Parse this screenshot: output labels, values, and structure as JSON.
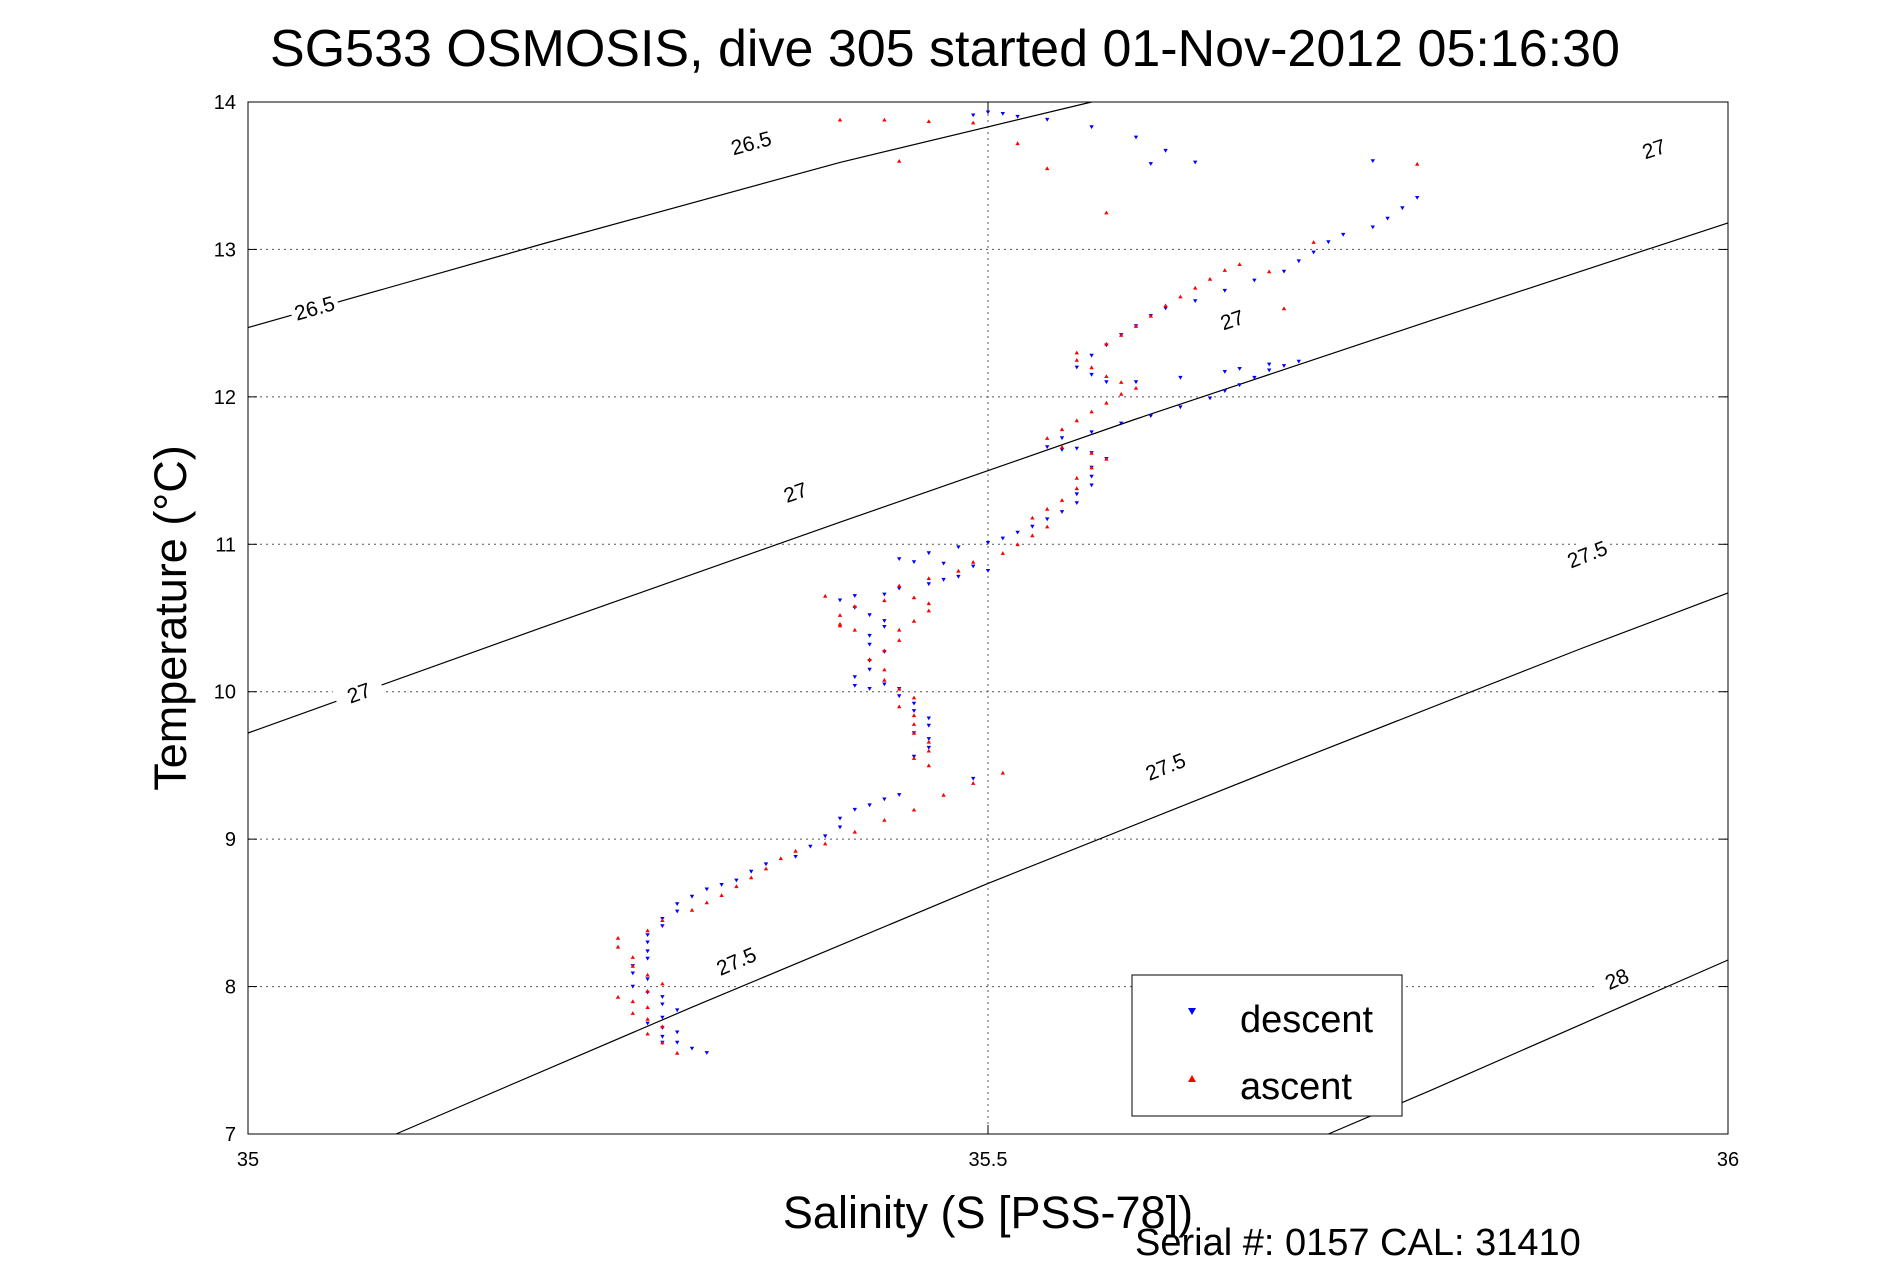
{
  "chart_data": {
    "type": "scatter",
    "title": "SG533 OSMOSIS, dive 305 started 01-Nov-2012 05:16:30",
    "xlabel": "Salinity (S [PSS-78])",
    "ylabel": "Temperature (°C)",
    "xlim": [
      35,
      36
    ],
    "ylim": [
      7,
      14
    ],
    "xticks": [
      "35",
      "35.5",
      "36"
    ],
    "xtick_values": [
      35,
      35.5,
      36
    ],
    "yticks": [
      "7",
      "8",
      "9",
      "10",
      "11",
      "12",
      "13",
      "14"
    ],
    "ytick_values": [
      7,
      8,
      9,
      10,
      11,
      12,
      13,
      14
    ],
    "grid": true,
    "legend_position": "bottom-right",
    "footer": "Serial #: 0157  CAL: 31410",
    "colors": {
      "descent": "#0000ff",
      "ascent": "#ff0000",
      "contour": "#000000"
    },
    "density_contours": [
      {
        "value": 26.5,
        "points": [
          [
            35.0,
            12.47
          ],
          [
            35.2,
            13.04
          ],
          [
            35.4,
            13.59
          ],
          [
            35.57,
            14.0
          ]
        ],
        "labels": [
          {
            "text": "26.5",
            "s": 35.045,
            "t": 12.6
          },
          {
            "text": "26.5",
            "s": 35.34,
            "t": 13.72
          }
        ]
      },
      {
        "value": 27,
        "points": [
          [
            35.0,
            9.72
          ],
          [
            35.2,
            10.44
          ],
          [
            35.4,
            11.15
          ],
          [
            35.6,
            11.85
          ],
          [
            35.8,
            12.52
          ],
          [
            36.0,
            13.18
          ]
        ],
        "labels": [
          {
            "text": "27",
            "s": 35.075,
            "t": 9.99
          },
          {
            "text": "27",
            "s": 35.37,
            "t": 11.35
          },
          {
            "text": "27",
            "s": 35.665,
            "t": 12.52
          },
          {
            "text": "27",
            "s": 35.95,
            "t": 13.68
          }
        ]
      },
      {
        "value": 27.5,
        "points": [
          [
            35.1,
            7.0
          ],
          [
            35.3,
            7.86
          ],
          [
            35.5,
            8.7
          ],
          [
            35.7,
            9.5
          ],
          [
            35.9,
            10.29
          ],
          [
            36.0,
            10.67
          ]
        ],
        "labels": [
          {
            "text": "27.5",
            "s": 35.33,
            "t": 8.17
          },
          {
            "text": "27.5",
            "s": 35.62,
            "t": 9.49
          },
          {
            "text": "27.5",
            "s": 35.905,
            "t": 10.93
          }
        ]
      },
      {
        "value": 28,
        "points": [
          [
            35.73,
            7.0
          ],
          [
            35.8,
            7.3
          ],
          [
            35.9,
            7.74
          ],
          [
            36.0,
            8.18
          ]
        ],
        "labels": [
          {
            "text": "28",
            "s": 35.925,
            "t": 8.05
          }
        ]
      }
    ],
    "series": [
      {
        "name": "descent",
        "marker": "triangle-down",
        "points": [
          [
            35.31,
            7.55
          ],
          [
            35.3,
            7.58
          ],
          [
            35.29,
            7.62
          ],
          [
            35.28,
            7.62
          ],
          [
            35.28,
            7.66
          ],
          [
            35.29,
            7.69
          ],
          [
            35.28,
            7.72
          ],
          [
            35.27,
            7.75
          ],
          [
            35.28,
            7.79
          ],
          [
            35.29,
            7.84
          ],
          [
            35.28,
            7.88
          ],
          [
            35.28,
            7.93
          ],
          [
            35.27,
            7.96
          ],
          [
            35.26,
            8.0
          ],
          [
            35.27,
            8.05
          ],
          [
            35.26,
            8.09
          ],
          [
            35.26,
            8.14
          ],
          [
            35.27,
            8.19
          ],
          [
            35.27,
            8.24
          ],
          [
            35.27,
            8.3
          ],
          [
            35.27,
            8.35
          ],
          [
            35.28,
            8.41
          ],
          [
            35.28,
            8.46
          ],
          [
            35.29,
            8.51
          ],
          [
            35.29,
            8.56
          ],
          [
            35.3,
            8.61
          ],
          [
            35.31,
            8.66
          ],
          [
            35.32,
            8.69
          ],
          [
            35.33,
            8.72
          ],
          [
            35.34,
            8.78
          ],
          [
            35.35,
            8.83
          ],
          [
            35.37,
            8.88
          ],
          [
            35.38,
            8.95
          ],
          [
            35.39,
            9.02
          ],
          [
            35.4,
            9.08
          ],
          [
            35.4,
            9.14
          ],
          [
            35.41,
            9.2
          ],
          [
            35.42,
            9.23
          ],
          [
            35.43,
            9.27
          ],
          [
            35.44,
            9.3
          ],
          [
            35.49,
            9.41
          ],
          [
            35.45,
            9.56
          ],
          [
            35.46,
            9.62
          ],
          [
            35.46,
            9.68
          ],
          [
            35.45,
            9.72
          ],
          [
            35.46,
            9.77
          ],
          [
            35.46,
            9.82
          ],
          [
            35.45,
            9.87
          ],
          [
            35.45,
            9.92
          ],
          [
            35.44,
            9.97
          ],
          [
            35.44,
            10.02
          ],
          [
            35.43,
            10.05
          ],
          [
            35.42,
            10.02
          ],
          [
            35.41,
            10.04
          ],
          [
            35.41,
            10.1
          ],
          [
            35.42,
            10.15
          ],
          [
            35.42,
            10.21
          ],
          [
            35.43,
            10.27
          ],
          [
            35.42,
            10.32
          ],
          [
            35.42,
            10.38
          ],
          [
            35.43,
            10.44
          ],
          [
            35.43,
            10.48
          ],
          [
            35.42,
            10.52
          ],
          [
            35.41,
            10.57
          ],
          [
            35.4,
            10.62
          ],
          [
            35.41,
            10.65
          ],
          [
            35.43,
            10.66
          ],
          [
            35.44,
            10.7
          ],
          [
            35.46,
            10.73
          ],
          [
            35.47,
            10.76
          ],
          [
            35.48,
            10.78
          ],
          [
            35.5,
            10.82
          ],
          [
            35.49,
            10.85
          ],
          [
            35.47,
            10.87
          ],
          [
            35.45,
            10.88
          ],
          [
            35.44,
            10.9
          ],
          [
            35.46,
            10.94
          ],
          [
            35.48,
            10.98
          ],
          [
            35.5,
            11.01
          ],
          [
            35.51,
            11.04
          ],
          [
            35.52,
            11.08
          ],
          [
            35.53,
            11.12
          ],
          [
            35.54,
            11.17
          ],
          [
            35.55,
            11.22
          ],
          [
            35.56,
            11.28
          ],
          [
            35.56,
            11.34
          ],
          [
            35.57,
            11.4
          ],
          [
            35.57,
            11.46
          ],
          [
            35.57,
            11.52
          ],
          [
            35.58,
            11.58
          ],
          [
            35.57,
            11.62
          ],
          [
            35.56,
            11.65
          ],
          [
            35.55,
            11.64
          ],
          [
            35.54,
            11.66
          ],
          [
            35.55,
            11.72
          ],
          [
            35.57,
            11.76
          ],
          [
            35.59,
            11.82
          ],
          [
            35.61,
            11.87
          ],
          [
            35.63,
            11.93
          ],
          [
            35.65,
            11.99
          ],
          [
            35.66,
            12.04
          ],
          [
            35.67,
            12.08
          ],
          [
            35.68,
            12.13
          ],
          [
            35.69,
            12.18
          ],
          [
            35.7,
            12.21
          ],
          [
            35.71,
            12.24
          ],
          [
            35.69,
            12.22
          ],
          [
            35.67,
            12.19
          ],
          [
            35.66,
            12.17
          ],
          [
            35.63,
            12.13
          ],
          [
            35.6,
            12.1
          ],
          [
            35.58,
            12.1
          ],
          [
            35.57,
            12.15
          ],
          [
            35.56,
            12.2
          ],
          [
            35.57,
            12.28
          ],
          [
            35.58,
            12.35
          ],
          [
            35.59,
            12.42
          ],
          [
            35.6,
            12.48
          ],
          [
            35.61,
            12.55
          ],
          [
            35.62,
            12.6
          ],
          [
            35.64,
            12.65
          ],
          [
            35.66,
            12.72
          ],
          [
            35.68,
            12.79
          ],
          [
            35.7,
            12.85
          ],
          [
            35.71,
            12.92
          ],
          [
            35.72,
            12.98
          ],
          [
            35.73,
            13.05
          ],
          [
            35.74,
            13.1
          ],
          [
            35.76,
            13.15
          ],
          [
            35.77,
            13.21
          ],
          [
            35.78,
            13.28
          ],
          [
            35.79,
            13.35
          ],
          [
            35.64,
            13.59
          ],
          [
            35.62,
            13.67
          ],
          [
            35.6,
            13.76
          ],
          [
            35.57,
            13.83
          ],
          [
            35.54,
            13.88
          ],
          [
            35.51,
            13.92
          ],
          [
            35.5,
            13.93
          ],
          [
            35.49,
            13.91
          ],
          [
            35.52,
            13.9
          ],
          [
            35.76,
            13.6
          ],
          [
            35.61,
            13.58
          ]
        ]
      },
      {
        "name": "ascent",
        "marker": "triangle-up",
        "points": [
          [
            35.29,
            7.55
          ],
          [
            35.28,
            7.62
          ],
          [
            35.27,
            7.68
          ],
          [
            35.28,
            7.73
          ],
          [
            35.27,
            7.78
          ],
          [
            35.26,
            7.82
          ],
          [
            35.27,
            7.86
          ],
          [
            35.26,
            7.9
          ],
          [
            35.25,
            7.93
          ],
          [
            35.27,
            7.97
          ],
          [
            35.28,
            8.02
          ],
          [
            35.27,
            8.08
          ],
          [
            35.26,
            8.14
          ],
          [
            35.26,
            8.2
          ],
          [
            35.25,
            8.27
          ],
          [
            35.25,
            8.33
          ],
          [
            35.27,
            8.38
          ],
          [
            35.28,
            8.45
          ],
          [
            35.3,
            8.52
          ],
          [
            35.31,
            8.57
          ],
          [
            35.32,
            8.62
          ],
          [
            35.33,
            8.68
          ],
          [
            35.34,
            8.74
          ],
          [
            35.35,
            8.8
          ],
          [
            35.36,
            8.87
          ],
          [
            35.37,
            8.92
          ],
          [
            35.39,
            8.97
          ],
          [
            35.41,
            9.05
          ],
          [
            35.43,
            9.13
          ],
          [
            35.45,
            9.2
          ],
          [
            35.47,
            9.3
          ],
          [
            35.49,
            9.38
          ],
          [
            35.51,
            9.45
          ],
          [
            35.46,
            9.5
          ],
          [
            35.45,
            9.55
          ],
          [
            35.46,
            9.6
          ],
          [
            35.46,
            9.66
          ],
          [
            35.45,
            9.72
          ],
          [
            35.45,
            9.78
          ],
          [
            35.45,
            9.84
          ],
          [
            35.44,
            9.9
          ],
          [
            35.45,
            9.96
          ],
          [
            35.44,
            10.02
          ],
          [
            35.43,
            10.08
          ],
          [
            35.43,
            10.15
          ],
          [
            35.42,
            10.22
          ],
          [
            35.43,
            10.28
          ],
          [
            35.44,
            10.35
          ],
          [
            35.44,
            10.42
          ],
          [
            35.45,
            10.48
          ],
          [
            35.46,
            10.55
          ],
          [
            35.46,
            10.6
          ],
          [
            35.45,
            10.64
          ],
          [
            35.43,
            10.62
          ],
          [
            35.41,
            10.58
          ],
          [
            35.4,
            10.52
          ],
          [
            35.4,
            10.46
          ],
          [
            35.41,
            10.42
          ],
          [
            35.4,
            10.45
          ],
          [
            35.39,
            10.65
          ],
          [
            35.44,
            10.72
          ],
          [
            35.46,
            10.77
          ],
          [
            35.48,
            10.82
          ],
          [
            35.49,
            10.88
          ],
          [
            35.51,
            10.94
          ],
          [
            35.52,
            11.0
          ],
          [
            35.53,
            11.06
          ],
          [
            35.54,
            11.12
          ],
          [
            35.53,
            11.18
          ],
          [
            35.54,
            11.24
          ],
          [
            35.55,
            11.3
          ],
          [
            35.56,
            11.38
          ],
          [
            35.56,
            11.45
          ],
          [
            35.57,
            11.52
          ],
          [
            35.58,
            11.58
          ],
          [
            35.57,
            11.62
          ],
          [
            35.55,
            11.66
          ],
          [
            35.54,
            11.72
          ],
          [
            35.55,
            11.78
          ],
          [
            35.56,
            11.84
          ],
          [
            35.57,
            11.9
          ],
          [
            35.58,
            11.96
          ],
          [
            35.59,
            12.02
          ],
          [
            35.6,
            12.06
          ],
          [
            35.59,
            12.1
          ],
          [
            35.58,
            12.14
          ],
          [
            35.57,
            12.2
          ],
          [
            35.56,
            12.25
          ],
          [
            35.56,
            12.3
          ],
          [
            35.58,
            12.36
          ],
          [
            35.59,
            12.42
          ],
          [
            35.6,
            12.48
          ],
          [
            35.61,
            12.55
          ],
          [
            35.62,
            12.62
          ],
          [
            35.63,
            12.68
          ],
          [
            35.64,
            12.74
          ],
          [
            35.65,
            12.8
          ],
          [
            35.66,
            12.86
          ],
          [
            35.67,
            12.9
          ],
          [
            35.69,
            12.85
          ],
          [
            35.58,
            13.25
          ],
          [
            35.54,
            13.55
          ],
          [
            35.52,
            13.72
          ],
          [
            35.49,
            13.86
          ],
          [
            35.46,
            13.87
          ],
          [
            35.43,
            13.88
          ],
          [
            35.4,
            13.88
          ],
          [
            35.44,
            13.6
          ],
          [
            35.72,
            13.05
          ],
          [
            35.79,
            13.58
          ],
          [
            35.7,
            12.6
          ]
        ]
      }
    ]
  },
  "legend": {
    "entries": [
      {
        "label": "descent",
        "color": "#0000ff",
        "marker": "triangle-down"
      },
      {
        "label": "ascent",
        "color": "#ff0000",
        "marker": "triangle-up"
      }
    ]
  }
}
